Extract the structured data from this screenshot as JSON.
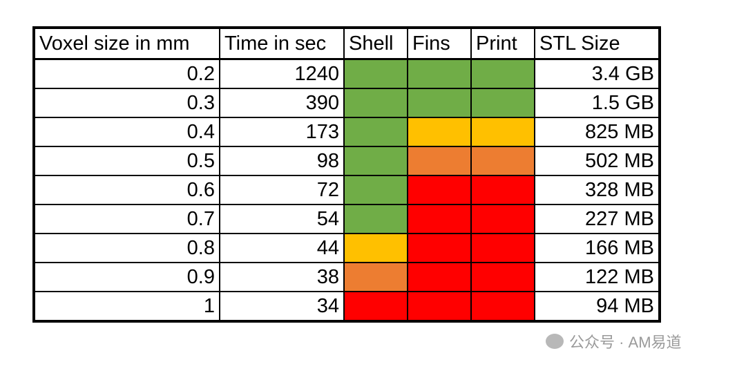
{
  "table": {
    "header": [
      "Voxel size in mm",
      "Time in sec",
      "Shell",
      "Fins",
      "Print",
      "STL Size"
    ],
    "rows": [
      {
        "voxel": 0.2,
        "time": 1240,
        "shell": "#70ad47",
        "fins": "#70ad47",
        "print": "#70ad47",
        "stl": "3.4 GB"
      },
      {
        "voxel": 0.3,
        "time": 390,
        "shell": "#70ad47",
        "fins": "#70ad47",
        "print": "#70ad47",
        "stl": "1.5 GB"
      },
      {
        "voxel": 0.4,
        "time": 173,
        "shell": "#70ad47",
        "fins": "#ffc000",
        "print": "#ffc000",
        "stl": "825 MB"
      },
      {
        "voxel": 0.5,
        "time": 98,
        "shell": "#70ad47",
        "fins": "#ed7d31",
        "print": "#ed7d31",
        "stl": "502 MB"
      },
      {
        "voxel": 0.6,
        "time": 72,
        "shell": "#70ad47",
        "fins": "#ff0000",
        "print": "#ff0000",
        "stl": "328 MB"
      },
      {
        "voxel": 0.7,
        "time": 54,
        "shell": "#70ad47",
        "fins": "#ff0000",
        "print": "#ff0000",
        "stl": "227 MB"
      },
      {
        "voxel": 0.8,
        "time": 44,
        "shell": "#ffc000",
        "fins": "#ff0000",
        "print": "#ff0000",
        "stl": "166 MB"
      },
      {
        "voxel": 0.9,
        "time": 38,
        "shell": "#ed7d31",
        "fins": "#ff0000",
        "print": "#ff0000",
        "stl": "122 MB"
      },
      {
        "voxel": 1,
        "time": 34,
        "shell": "#ff0000",
        "fins": "#ff0000",
        "print": "#ff0000",
        "stl": "94 MB"
      }
    ]
  },
  "watermark": "公众号 · AM易道"
}
